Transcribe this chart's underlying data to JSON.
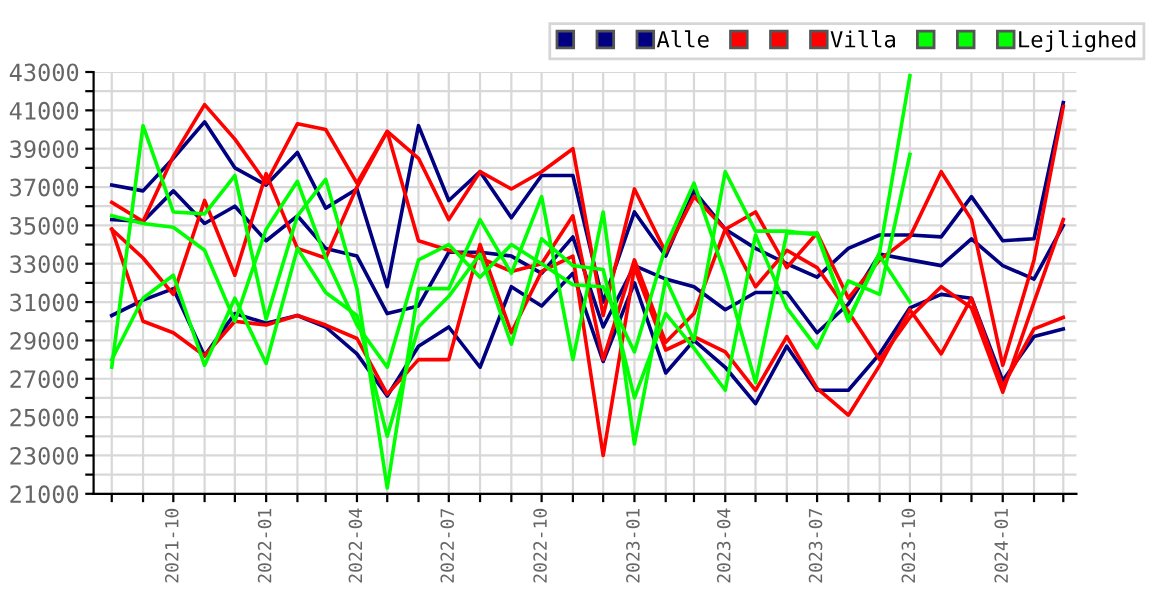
{
  "chart_data": {
    "type": "line",
    "x": [
      "2021-08",
      "2021-09",
      "2021-10",
      "2021-11",
      "2021-12",
      "2022-01",
      "2022-02",
      "2022-03",
      "2022-04",
      "2022-05",
      "2022-06",
      "2022-07",
      "2022-08",
      "2022-09",
      "2022-10",
      "2022-11",
      "2022-12",
      "2023-01",
      "2023-02",
      "2023-03",
      "2023-04",
      "2023-05",
      "2023-06",
      "2023-07",
      "2023-08",
      "2023-09",
      "2023-10",
      "2023-11",
      "2023-12",
      "2024-01",
      "2024-02",
      "2024-03"
    ],
    "series": [
      {
        "color": "#000080",
        "values": [
          37100,
          36800,
          38500,
          40400,
          38000,
          37100,
          38800,
          35900,
          36900,
          31800,
          40200,
          36300,
          37800,
          35400,
          37600,
          37600,
          31000,
          35700,
          33400,
          36800,
          34800,
          33800,
          33000,
          32300,
          33800,
          34500,
          34500,
          34400,
          36500,
          34200,
          34300,
          41400
        ]
      },
      {
        "color": "#000080",
        "values": [
          35300,
          35200,
          36800,
          35100,
          36000,
          34200,
          35500,
          33800,
          33400,
          30400,
          30800,
          33600,
          33600,
          33400,
          32500,
          34400,
          29700,
          32900,
          32200,
          31800,
          30600,
          31500,
          31500,
          29400,
          30900,
          33500,
          33200,
          32900,
          34300,
          32900,
          32200,
          35000
        ]
      },
      {
        "name": "Alle",
        "color": "#000080",
        "values": [
          30300,
          31100,
          31700,
          28200,
          30400,
          29900,
          30300,
          29700,
          28300,
          26100,
          28700,
          29700,
          27600,
          31800,
          30800,
          32500,
          27900,
          32000,
          27300,
          29000,
          27600,
          25700,
          28700,
          26400,
          26400,
          28300,
          30700,
          31400,
          31200,
          26900,
          29200,
          29600
        ]
      },
      {
        "color": "#ff0000",
        "values": [
          36200,
          35200,
          38600,
          41300,
          39500,
          37200,
          40300,
          40000,
          37200,
          39900,
          38500,
          35300,
          37800,
          36900,
          37800,
          39000,
          30300,
          36900,
          33600,
          36500,
          34800,
          35700,
          32800,
          34600,
          31200,
          33200,
          34400,
          37800,
          35300,
          27700,
          33200,
          41200
        ]
      },
      {
        "color": "#ff0000",
        "values": [
          34800,
          33300,
          31400,
          36300,
          32400,
          37700,
          33800,
          33300,
          37000,
          39900,
          34200,
          33700,
          33300,
          32600,
          33000,
          35500,
          28000,
          33200,
          28900,
          30400,
          34800,
          31800,
          33700,
          32800,
          30500,
          28000,
          30200,
          31800,
          30700,
          26300,
          31000,
          35300
        ]
      },
      {
        "name": "Villa",
        "color": "#ff0000",
        "values": [
          34800,
          30000,
          29400,
          28200,
          30000,
          29800,
          30300,
          29800,
          29100,
          26200,
          28000,
          28000,
          34000,
          29400,
          32600,
          33400,
          23000,
          32800,
          28500,
          29200,
          28400,
          26400,
          29200,
          26500,
          25100,
          27700,
          30600,
          28300,
          31200,
          26600,
          29600,
          30200
        ]
      },
      {
        "color": "#00ff00",
        "values": [
          27600,
          40200,
          35700,
          35600,
          37600,
          30100,
          35500,
          37400,
          31700,
          21300,
          31700,
          31700,
          35300,
          32500,
          36500,
          28000,
          35700,
          23600,
          32200,
          29000,
          37800,
          34700,
          34700,
          34500,
          30000,
          33600,
          42800,
          null,
          null,
          null,
          null,
          null
        ]
      },
      {
        "color": "#00ff00",
        "values": [
          28000,
          31200,
          32400,
          27700,
          31200,
          27800,
          33800,
          31500,
          30300,
          24000,
          29700,
          31300,
          33500,
          28800,
          34300,
          32900,
          32700,
          26000,
          30400,
          28600,
          26400,
          34500,
          30700,
          28600,
          32100,
          31400,
          38700,
          null,
          null,
          null,
          null,
          null
        ]
      },
      {
        "name": "Lejlighed",
        "color": "#00ff00",
        "values": [
          35500,
          35100,
          34900,
          33700,
          30000,
          34800,
          37300,
          33300,
          29800,
          27600,
          33200,
          34000,
          32300,
          34000,
          33000,
          31900,
          31800,
          28400,
          33900,
          37200,
          32400,
          26800,
          34600,
          34600,
          30100,
          33400,
          31000,
          null,
          null,
          null,
          null,
          null
        ]
      }
    ],
    "xlim": [
      "2021-07-14",
      "2024-03-14"
    ],
    "xticks": [
      {
        "value": "2021-08",
        "label": null
      },
      {
        "value": "2021-09",
        "label": null
      },
      {
        "value": "2021-10",
        "label": "2021-10"
      },
      {
        "value": "2021-11",
        "label": null
      },
      {
        "value": "2021-12",
        "label": null
      },
      {
        "value": "2022-01",
        "label": "2022-01"
      },
      {
        "value": "2022-02",
        "label": null
      },
      {
        "value": "2022-03",
        "label": null
      },
      {
        "value": "2022-04",
        "label": "2022-04"
      },
      {
        "value": "2022-05",
        "label": null
      },
      {
        "value": "2022-06",
        "label": null
      },
      {
        "value": "2022-07",
        "label": "2022-07"
      },
      {
        "value": "2022-08",
        "label": null
      },
      {
        "value": "2022-09",
        "label": null
      },
      {
        "value": "2022-10",
        "label": "2022-10"
      },
      {
        "value": "2022-11",
        "label": null
      },
      {
        "value": "2022-12",
        "label": null
      },
      {
        "value": "2023-01",
        "label": "2023-01"
      },
      {
        "value": "2023-02",
        "label": null
      },
      {
        "value": "2023-03",
        "label": null
      },
      {
        "value": "2023-04",
        "label": "2023-04"
      },
      {
        "value": "2023-05",
        "label": null
      },
      {
        "value": "2023-06",
        "label": null
      },
      {
        "value": "2023-07",
        "label": "2023-07"
      },
      {
        "value": "2023-08",
        "label": null
      },
      {
        "value": "2023-09",
        "label": null
      },
      {
        "value": "2023-10",
        "label": "2023-10"
      },
      {
        "value": "2023-11",
        "label": null
      },
      {
        "value": "2023-12",
        "label": null
      },
      {
        "value": "2024-01",
        "label": "2024-01"
      },
      {
        "value": "2024-02",
        "label": null
      },
      {
        "value": "2024-03",
        "label": null
      }
    ],
    "ylim": [
      21000,
      43000
    ],
    "yticks": [
      21000,
      {
        "value": 22000,
        "label": null
      },
      23000,
      {
        "value": 24000,
        "label": null
      },
      25000,
      {
        "value": 26000,
        "label": null
      },
      27000,
      {
        "value": 28000,
        "label": null
      },
      29000,
      {
        "value": 30000,
        "label": null
      },
      31000,
      {
        "value": 32000,
        "label": null
      },
      33000,
      {
        "value": 34000,
        "label": null
      },
      35000,
      {
        "value": 36000,
        "label": null
      },
      37000,
      {
        "value": 38000,
        "label": null
      },
      39000,
      {
        "value": 40000,
        "label": null
      },
      41000,
      {
        "value": 42000,
        "label": null
      },
      43000
    ],
    "grid": true,
    "legend": "top right",
    "marker": "none",
    "line_style": "solid"
  }
}
